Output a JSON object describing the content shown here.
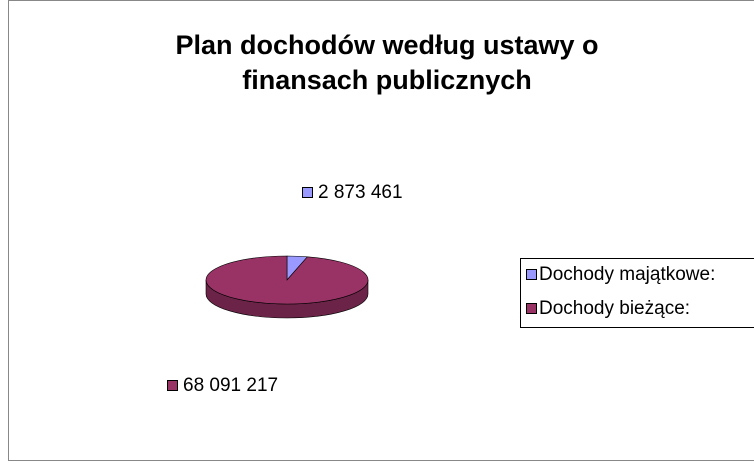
{
  "chart_data": {
    "type": "pie",
    "title": "Plan dochodów według ustawy o finansach publicznych",
    "categories": [
      "Dochody majątkowe:",
      "Dochody bieżące:"
    ],
    "values": [
      2873461,
      68091217
    ],
    "value_labels": [
      "2 873 461",
      "68 091 217"
    ],
    "colors": [
      "#9999ff",
      "#993366"
    ],
    "legend": "right"
  }
}
